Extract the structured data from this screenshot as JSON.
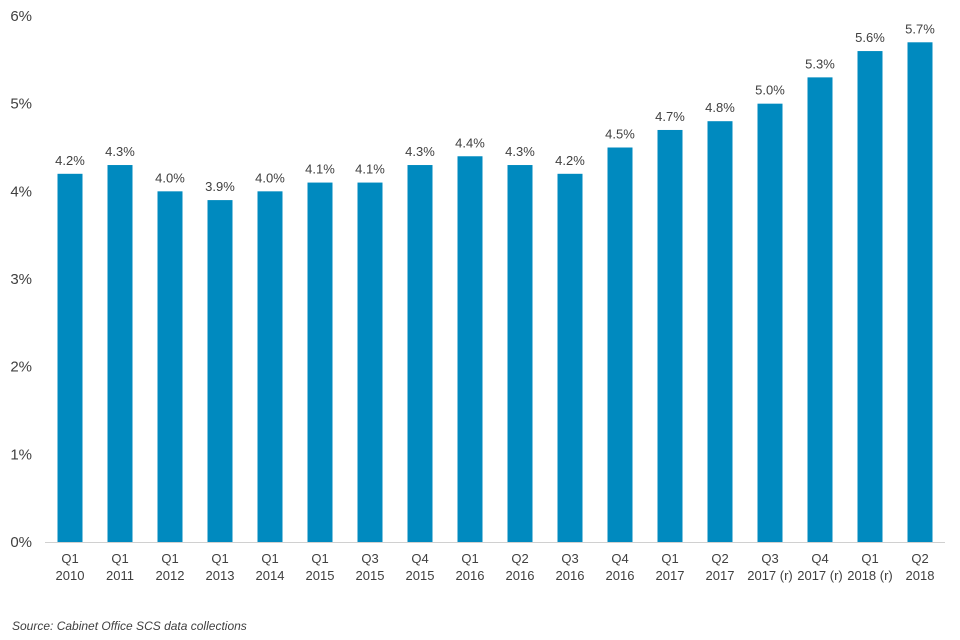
{
  "chart_data": {
    "type": "bar",
    "title": "",
    "xlabel": "",
    "ylabel": "",
    "ylim": [
      0,
      6
    ],
    "yticks": [
      "0%",
      "1%",
      "2%",
      "3%",
      "4%",
      "5%",
      "6%"
    ],
    "grid": false,
    "bar_color": "#008ABF",
    "categories": [
      [
        "Q1",
        "2010"
      ],
      [
        "Q1",
        "2011"
      ],
      [
        "Q1",
        "2012"
      ],
      [
        "Q1",
        "2013"
      ],
      [
        "Q1",
        "2014"
      ],
      [
        "Q1",
        "2015"
      ],
      [
        "Q3",
        "2015"
      ],
      [
        "Q4",
        "2015"
      ],
      [
        "Q1",
        "2016"
      ],
      [
        "Q2",
        "2016"
      ],
      [
        "Q3",
        "2016"
      ],
      [
        "Q4",
        "2016"
      ],
      [
        "Q1",
        "2017"
      ],
      [
        "Q2",
        "2017"
      ],
      [
        "Q3",
        "2017 (r)"
      ],
      [
        "Q4",
        "2017 (r)"
      ],
      [
        "Q1",
        "2018 (r)"
      ],
      [
        "Q2",
        "2018"
      ]
    ],
    "values": [
      4.2,
      4.3,
      4.0,
      3.9,
      4.0,
      4.1,
      4.1,
      4.3,
      4.4,
      4.3,
      4.2,
      4.5,
      4.7,
      4.8,
      5.0,
      5.3,
      5.6,
      5.7
    ],
    "data_labels": [
      "4.2%",
      "4.3%",
      "4.0%",
      "3.9%",
      "4.0%",
      "4.1%",
      "4.1%",
      "4.3%",
      "4.4%",
      "4.3%",
      "4.2%",
      "4.5%",
      "4.7%",
      "4.8%",
      "5.0%",
      "5.3%",
      "5.6%",
      "5.7%"
    ]
  },
  "source_note": "Source: Cabinet Office SCS data collections"
}
